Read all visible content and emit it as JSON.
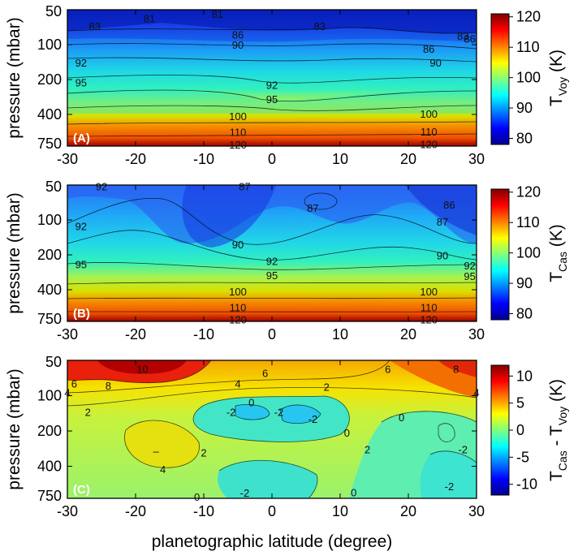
{
  "chart_data": [
    {
      "type": "heatmap",
      "panel_label": "(A)",
      "ylabel": "pressure (mbar)",
      "y_ticks": [
        "50",
        "100",
        "200",
        "400",
        "750"
      ],
      "x_ticks": [
        "-30",
        "-20",
        "-10",
        "0",
        "10",
        "20",
        "30"
      ],
      "xlim": [
        -30,
        30
      ],
      "colorbar": {
        "label_main": "T",
        "label_sub": "Voy",
        "label_unit": " (K)",
        "range": [
          78,
          121
        ],
        "ticks": [
          "80",
          "90",
          "100",
          "110",
          "120"
        ]
      },
      "contours": [
        {
          "lon": -18,
          "p": 60,
          "t": "81"
        },
        {
          "lon": -8,
          "p": 55,
          "t": "81"
        },
        {
          "lon": -26,
          "p": 70,
          "t": "83"
        },
        {
          "lon": 7,
          "p": 70,
          "t": "83"
        },
        {
          "lon": 28,
          "p": 85,
          "t": "83"
        },
        {
          "lon": 29,
          "p": 90,
          "t": "86"
        },
        {
          "lon": -5,
          "p": 83,
          "t": "86"
        },
        {
          "lon": 23,
          "p": 110,
          "t": "86"
        },
        {
          "lon": -5,
          "p": 102,
          "t": "90"
        },
        {
          "lon": 24,
          "p": 145,
          "t": "90"
        },
        {
          "lon": -28,
          "p": 145,
          "t": "92"
        },
        {
          "lon": 0,
          "p": 225,
          "t": "92"
        },
        {
          "lon": -28,
          "p": 215,
          "t": "95"
        },
        {
          "lon": 0,
          "p": 300,
          "t": "95"
        },
        {
          "lon": -5,
          "p": 420,
          "t": "100"
        },
        {
          "lon": 23,
          "p": 400,
          "t": "100"
        },
        {
          "lon": -5,
          "p": 575,
          "t": "110"
        },
        {
          "lon": 23,
          "p": 570,
          "t": "110"
        },
        {
          "lon": -5,
          "p": 740,
          "t": "120"
        },
        {
          "lon": 23,
          "p": 730,
          "t": "120"
        }
      ]
    },
    {
      "type": "heatmap",
      "panel_label": "(B)",
      "ylabel": "pressure (mbar)",
      "y_ticks": [
        "50",
        "100",
        "200",
        "400",
        "750"
      ],
      "x_ticks": [
        "-30",
        "-20",
        "-10",
        "0",
        "10",
        "20",
        "30"
      ],
      "xlim": [
        -30,
        30
      ],
      "colorbar": {
        "label_main": "T",
        "label_sub": "Cas",
        "label_unit": " (K)",
        "range": [
          78,
          121
        ],
        "ticks": [
          "80",
          "90",
          "100",
          "110",
          "120"
        ]
      },
      "contours": [
        {
          "lon": -25,
          "p": 52,
          "t": "92"
        },
        {
          "lon": -4,
          "p": 52,
          "t": "87"
        },
        {
          "lon": 6,
          "p": 80,
          "t": "87"
        },
        {
          "lon": 26,
          "p": 75,
          "t": "86"
        },
        {
          "lon": 25,
          "p": 105,
          "t": "87"
        },
        {
          "lon": -28,
          "p": 115,
          "t": "92"
        },
        {
          "lon": -5,
          "p": 165,
          "t": "90"
        },
        {
          "lon": 25,
          "p": 205,
          "t": "90"
        },
        {
          "lon": 0,
          "p": 230,
          "t": "92"
        },
        {
          "lon": 29,
          "p": 250,
          "t": "92"
        },
        {
          "lon": -28,
          "p": 245,
          "t": "95"
        },
        {
          "lon": 0,
          "p": 305,
          "t": "95"
        },
        {
          "lon": 29,
          "p": 310,
          "t": "95"
        },
        {
          "lon": -5,
          "p": 420,
          "t": "100"
        },
        {
          "lon": 23,
          "p": 420,
          "t": "100"
        },
        {
          "lon": -5,
          "p": 575,
          "t": "110"
        },
        {
          "lon": 23,
          "p": 575,
          "t": "110"
        },
        {
          "lon": -5,
          "p": 735,
          "t": "120"
        },
        {
          "lon": 23,
          "p": 735,
          "t": "120"
        }
      ]
    },
    {
      "type": "heatmap",
      "panel_label": "(C)",
      "ylabel": "pressure (mbar)",
      "y_ticks": [
        "50",
        "100",
        "200",
        "400",
        "750"
      ],
      "x_ticks": [
        "-30",
        "-20",
        "-10",
        "0",
        "10",
        "20",
        "30"
      ],
      "xlim": [
        -30,
        30
      ],
      "xlabel": "planetographic latitude (degree)",
      "colorbar": {
        "label_main": "T",
        "label_sub": "Cas",
        "label_mid": " - T",
        "label_sub2": "Voy",
        "label_unit": " (K)",
        "range": [
          -12,
          12
        ],
        "ticks": [
          "10",
          "5",
          "0",
          "-5",
          "-10"
        ]
      },
      "contours": [
        {
          "lon": -19,
          "p": 60,
          "t": "10"
        },
        {
          "lon": -24,
          "p": 83,
          "t": "8"
        },
        {
          "lon": -29,
          "p": 80,
          "t": "6"
        },
        {
          "lon": -30,
          "p": 95,
          "t": "4"
        },
        {
          "lon": -1,
          "p": 65,
          "t": "6"
        },
        {
          "lon": 17,
          "p": 60,
          "t": "6"
        },
        {
          "lon": 27,
          "p": 60,
          "t": "8"
        },
        {
          "lon": -5,
          "p": 80,
          "t": "4"
        },
        {
          "lon": 30,
          "p": 95,
          "t": "4"
        },
        {
          "lon": 8,
          "p": 85,
          "t": "2"
        },
        {
          "lon": -27,
          "p": 140,
          "t": "2"
        },
        {
          "lon": -3,
          "p": 115,
          "t": "0"
        },
        {
          "lon": -6,
          "p": 140,
          "t": "-2"
        },
        {
          "lon": 1,
          "p": 140,
          "t": "-2"
        },
        {
          "lon": 6,
          "p": 160,
          "t": "-2"
        },
        {
          "lon": 11,
          "p": 210,
          "t": "0"
        },
        {
          "lon": 19,
          "p": 155,
          "t": "0"
        },
        {
          "lon": -17,
          "p": 300,
          "t": "–"
        },
        {
          "lon": -16,
          "p": 430,
          "t": "4"
        },
        {
          "lon": -10,
          "p": 310,
          "t": "2"
        },
        {
          "lon": 14,
          "p": 290,
          "t": "2"
        },
        {
          "lon": 28,
          "p": 290,
          "t": "-2"
        },
        {
          "lon": 26,
          "p": 600,
          "t": "-2"
        },
        {
          "lon": -4,
          "p": 680,
          "t": "-2"
        },
        {
          "lon": -11,
          "p": 740,
          "t": "0"
        },
        {
          "lon": 12,
          "p": 675,
          "t": "0"
        }
      ]
    }
  ]
}
